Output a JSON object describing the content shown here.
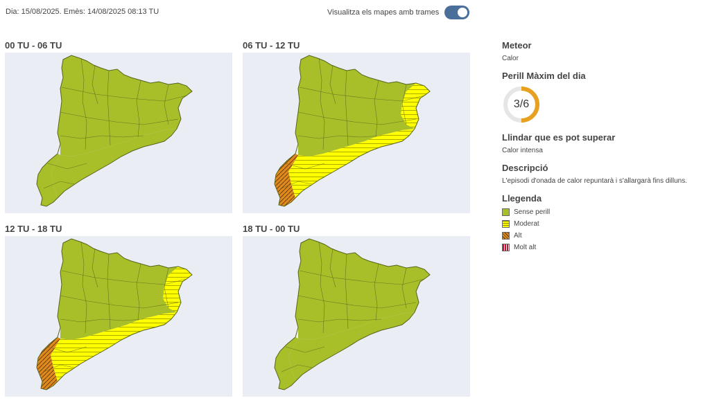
{
  "header": {
    "dates": "Dia: 15/08/2025. Emès: 14/08/2025 08:13 TU",
    "toggle_label": "Visualitza els mapes amb trames",
    "toggle_on": true
  },
  "maps": [
    {
      "title": "00 TU - 06 TU",
      "levels": [
        "sense",
        "sense",
        "sense",
        "sense"
      ]
    },
    {
      "title": "06 TU - 12 TU",
      "levels": [
        "sense",
        "moderat",
        "alt",
        "moderat"
      ]
    },
    {
      "title": "12 TU - 18 TU",
      "levels": [
        "sense",
        "moderat",
        "alt",
        "moderat"
      ]
    },
    {
      "title": "18 TU - 00 TU",
      "levels": [
        "sense",
        "sense",
        "sense",
        "sense"
      ]
    }
  ],
  "info": {
    "meteor_title": "Meteor",
    "meteor_value": "Calor",
    "perill_title": "Perill Màxim del dia",
    "perill_value": "3/6",
    "perill_fraction": 0.5,
    "llindar_title": "Llindar que es pot superar",
    "llindar_value": "Calor intensa",
    "descripcio_title": "Descripció",
    "descripcio_value": "L'episodi d'onada de calor repuntarà i s'allargarà fins dilluns.",
    "llegenda_title": "Llegenda"
  },
  "legend": [
    {
      "label": "Sense perill",
      "level": "sense"
    },
    {
      "label": "Moderat",
      "level": "moderat"
    },
    {
      "label": "Alt",
      "level": "alt"
    },
    {
      "label": "Molt alt",
      "level": "moltalt"
    }
  ],
  "colors": {
    "sense": "#a8bf2a",
    "moderat": "#ffff00",
    "alt": "#e08a1e",
    "moltalt": "#c8102e",
    "gauge": "#e8a020",
    "gauge_track": "#e6e6e6",
    "toggle": "#4a6f9a"
  }
}
